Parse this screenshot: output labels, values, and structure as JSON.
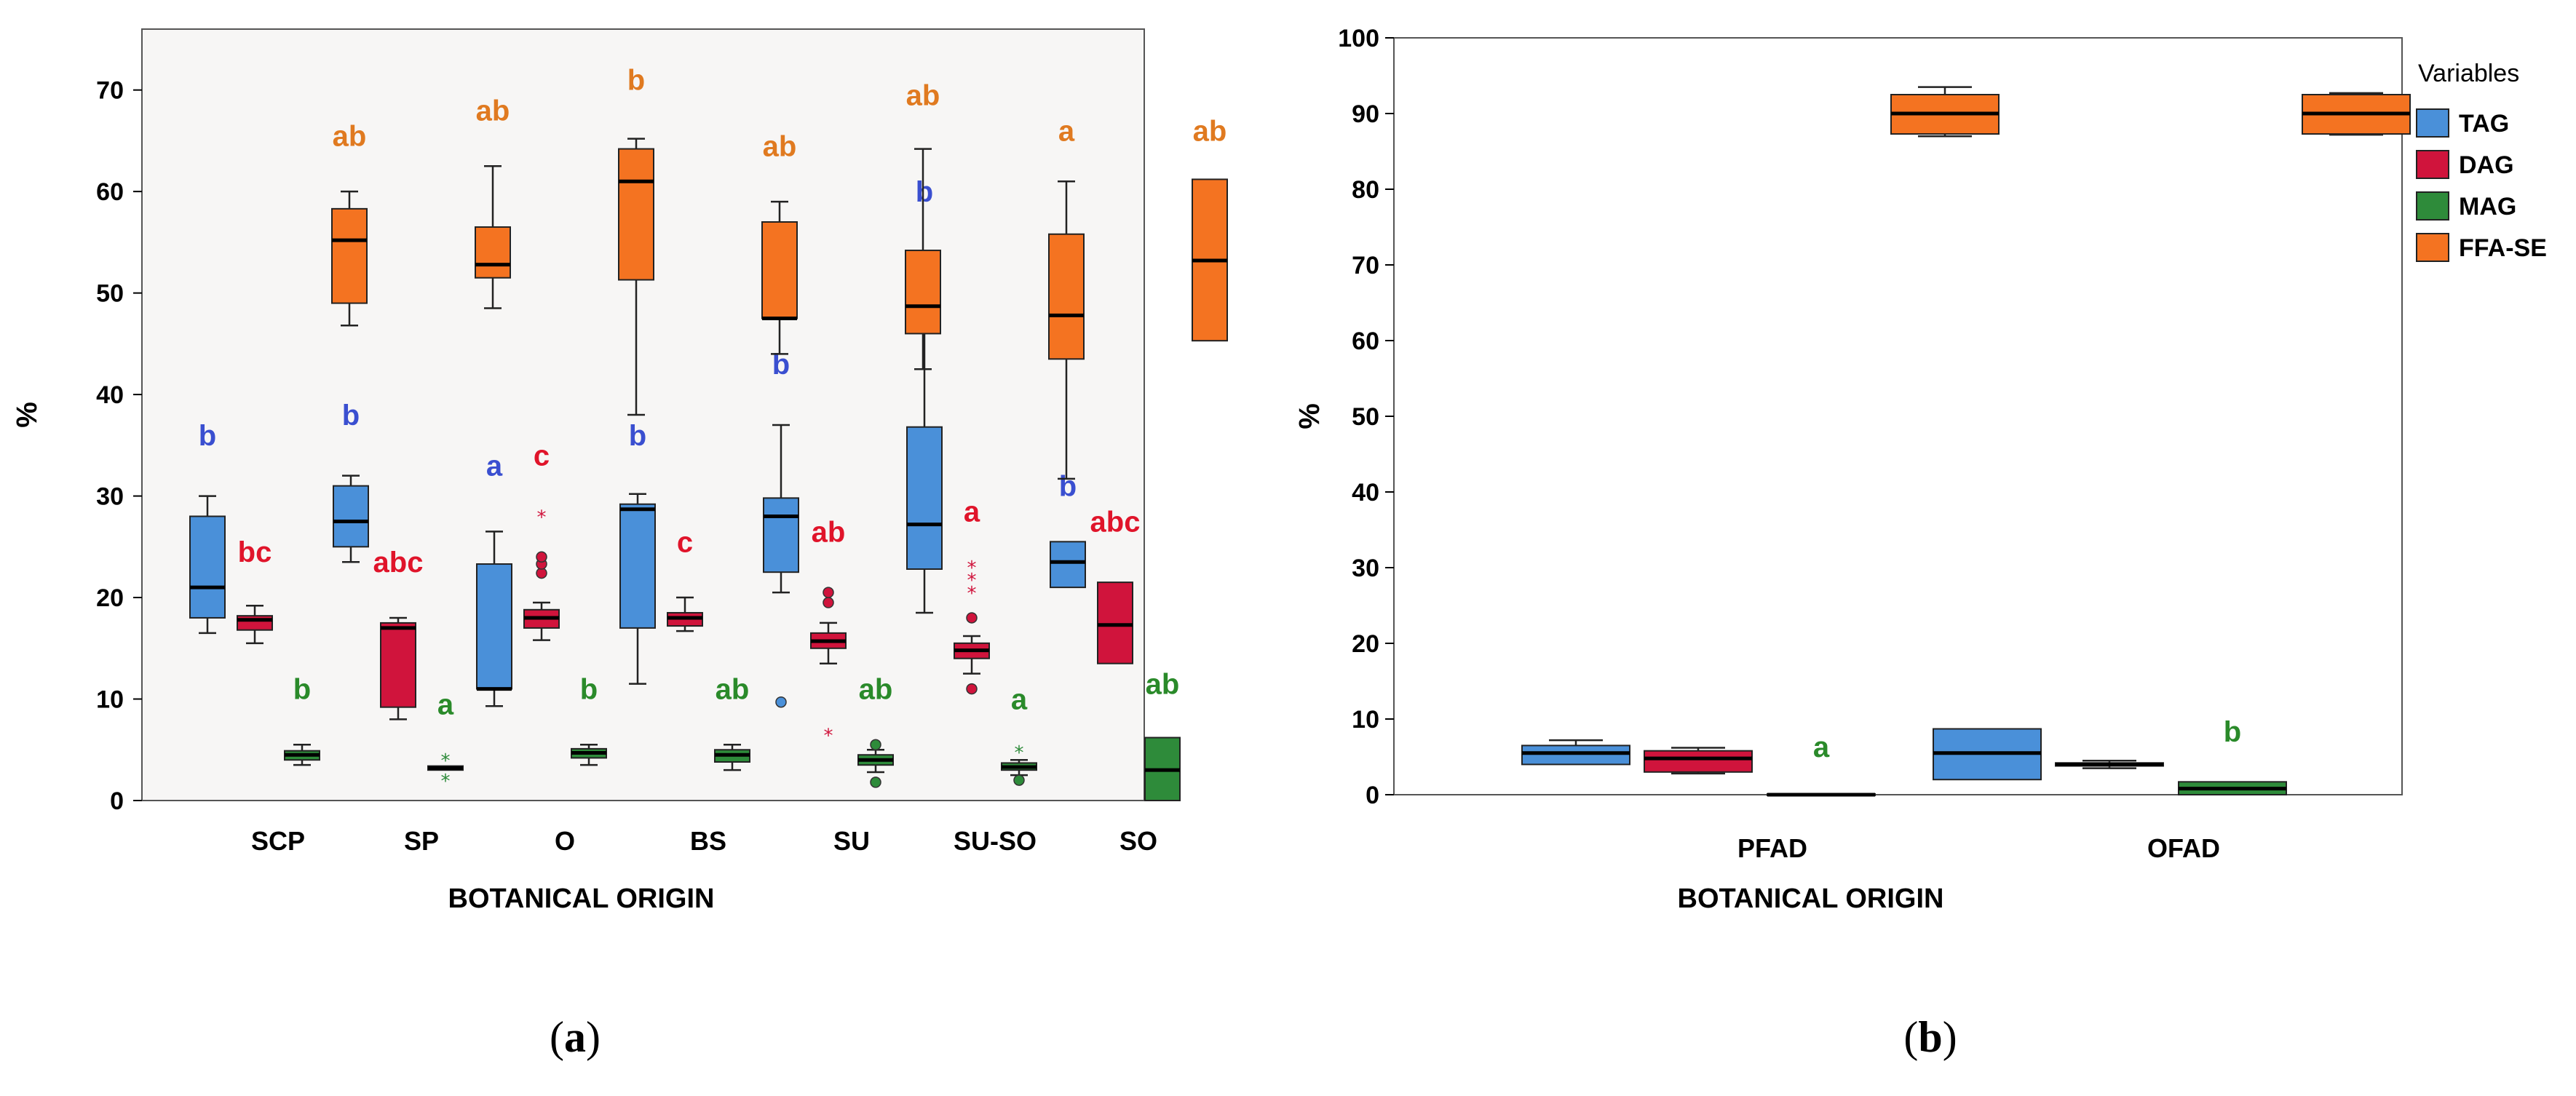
{
  "colors": {
    "TAG": "#4a90d9",
    "DAG": "#d0143c",
    "MAG": "#2e8b3a",
    "FFA-SE": "#f47321",
    "letter_TAG": "#3a4fd0",
    "letter_DAG": "#e0142a",
    "letter_MAG": "#2a8a2a",
    "letter_FFA-SE": "#e07a20",
    "panel_a_bg": "#f7f6f5"
  },
  "chart_data": [
    {
      "id": "a",
      "type": "box",
      "panel_label_open": "(",
      "panel_label_letter": "a",
      "panel_label_close": ")",
      "xlabel": "BOTANICAL ORIGIN",
      "ylabel": "%",
      "ylim": [
        0,
        76
      ],
      "yticks": [
        "0",
        "10",
        "20",
        "30",
        "40",
        "50",
        "60",
        "70"
      ],
      "categories": [
        "SCP",
        "SP",
        "O",
        "BS",
        "SU",
        "SU-SO",
        "SO"
      ],
      "series": [
        {
          "name": "TAG",
          "boxes": [
            {
              "min": 16.5,
              "q1": 18,
              "median": 21,
              "q3": 28,
              "max": 30,
              "letter": "b",
              "letter_y": 35
            },
            {
              "min": 23.5,
              "q1": 25,
              "median": 27.5,
              "q3": 31,
              "max": 32,
              "letter": "b",
              "letter_y": 37
            },
            {
              "min": 9.3,
              "q1": 11,
              "median": 11,
              "q3": 23.3,
              "max": 26.5,
              "letter": "a",
              "letter_y": 32
            },
            {
              "min": 11.5,
              "q1": 17,
              "median": 28.7,
              "q3": 29.2,
              "max": 30.2,
              "letter": "b",
              "letter_y": 35
            },
            {
              "min": 20.5,
              "q1": 22.5,
              "median": 28,
              "q3": 29.8,
              "max": 37,
              "letter": "b",
              "letter_y": 42
            },
            {
              "min": 18.5,
              "q1": 22.8,
              "median": 27.2,
              "q3": 36.8,
              "max": 54,
              "letter": "b",
              "letter_y": 59
            },
            {
              "min": 21,
              "q1": 21,
              "median": 23.5,
              "q3": 25.5,
              "max": 25.5,
              "letter": "b",
              "letter_y": 30
            }
          ],
          "outliers": [
            {
              "cat": "SU",
              "y": 9.7,
              "shape": "circle"
            }
          ]
        },
        {
          "name": "DAG",
          "boxes": [
            {
              "min": 15.5,
              "q1": 16.8,
              "median": 17.8,
              "q3": 18.2,
              "max": 19.2,
              "letter": "bc",
              "letter_y": 23.5
            },
            {
              "min": 8,
              "q1": 9.2,
              "median": 17,
              "q3": 17.5,
              "max": 18,
              "letter": "abc",
              "letter_y": 22.5
            },
            {
              "min": 15.8,
              "q1": 17,
              "median": 18,
              "q3": 18.8,
              "max": 19.5,
              "letter": "c",
              "letter_y": 33
            },
            {
              "min": 16.7,
              "q1": 17.2,
              "median": 18,
              "q3": 18.5,
              "max": 20,
              "letter": "c",
              "letter_y": 24.5
            },
            {
              "min": 13.5,
              "q1": 15,
              "median": 15.7,
              "q3": 16.5,
              "max": 17.5,
              "letter": "ab",
              "letter_y": 25.5
            },
            {
              "min": 12.5,
              "q1": 14,
              "median": 14.8,
              "q3": 15.5,
              "max": 16.2,
              "letter": "a",
              "letter_y": 27.5
            },
            {
              "min": 13.5,
              "q1": 13.5,
              "median": 17.3,
              "q3": 21.5,
              "max": 21.5,
              "letter": "abc",
              "letter_y": 26.5
            }
          ],
          "outliers": [
            {
              "cat": "O",
              "y": 22.4,
              "shape": "circle"
            },
            {
              "cat": "O",
              "y": 23.3,
              "shape": "circle"
            },
            {
              "cat": "O",
              "y": 24,
              "shape": "circle"
            },
            {
              "cat": "O",
              "y": 28,
              "shape": "star"
            },
            {
              "cat": "SU",
              "y": 19.5,
              "shape": "circle"
            },
            {
              "cat": "SU",
              "y": 20.5,
              "shape": "circle"
            },
            {
              "cat": "SU",
              "y": 6.5,
              "shape": "star"
            },
            {
              "cat": "SU-SO",
              "y": 11,
              "shape": "circle"
            },
            {
              "cat": "SU-SO",
              "y": 18,
              "shape": "circle"
            },
            {
              "cat": "SU-SO",
              "y": 20.5,
              "shape": "star"
            },
            {
              "cat": "SU-SO",
              "y": 21.8,
              "shape": "star"
            },
            {
              "cat": "SU-SO",
              "y": 23,
              "shape": "star"
            }
          ]
        },
        {
          "name": "MAG",
          "boxes": [
            {
              "min": 3.5,
              "q1": 4,
              "median": 4.5,
              "q3": 4.9,
              "max": 5.5,
              "letter": "b",
              "letter_y": 10
            },
            {
              "min": 3,
              "q1": 3,
              "median": 3.2,
              "q3": 3.4,
              "max": 3.4,
              "letter": "a",
              "letter_y": 8.5
            },
            {
              "min": 3.5,
              "q1": 4.2,
              "median": 4.7,
              "q3": 5.1,
              "max": 5.5,
              "letter": "b",
              "letter_y": 10
            },
            {
              "min": 3,
              "q1": 3.8,
              "median": 4.5,
              "q3": 5,
              "max": 5.5,
              "letter": "ab",
              "letter_y": 10
            },
            {
              "min": 2.8,
              "q1": 3.5,
              "median": 4,
              "q3": 4.5,
              "max": 5,
              "letter": "ab",
              "letter_y": 10
            },
            {
              "min": 2.5,
              "q1": 3,
              "median": 3.3,
              "q3": 3.7,
              "max": 4,
              "letter": "a",
              "letter_y": 9
            },
            {
              "min": 0,
              "q1": 0,
              "median": 3,
              "q3": 6.2,
              "max": 6.2,
              "letter": "ab",
              "letter_y": 10.5
            }
          ],
          "outliers": [
            {
              "cat": "SP",
              "y": 2,
              "shape": "star"
            },
            {
              "cat": "SP",
              "y": 4,
              "shape": "star"
            },
            {
              "cat": "SU",
              "y": 1.8,
              "shape": "circle"
            },
            {
              "cat": "SU",
              "y": 5.5,
              "shape": "circle"
            },
            {
              "cat": "SU-SO",
              "y": 2,
              "shape": "circle"
            },
            {
              "cat": "SU-SO",
              "y": 4.8,
              "shape": "star"
            }
          ]
        },
        {
          "name": "FFA-SE",
          "boxes": [
            {
              "min": 46.8,
              "q1": 49,
              "median": 55.2,
              "q3": 58.3,
              "max": 60,
              "letter": "ab",
              "letter_y": 64.5
            },
            {
              "min": 48.5,
              "q1": 51.5,
              "median": 52.8,
              "q3": 56.5,
              "max": 62.5,
              "letter": "ab",
              "letter_y": 67
            },
            {
              "min": 38,
              "q1": 51.3,
              "median": 61,
              "q3": 64.2,
              "max": 65.2,
              "letter": "b",
              "letter_y": 70
            },
            {
              "min": 44,
              "q1": 47.5,
              "median": 47.5,
              "q3": 57,
              "max": 59,
              "letter": "ab",
              "letter_y": 63.5
            },
            {
              "min": 42.5,
              "q1": 46,
              "median": 48.7,
              "q3": 54.2,
              "max": 64.2,
              "letter": "ab",
              "letter_y": 68.5
            },
            {
              "min": 31.7,
              "q1": 43.5,
              "median": 47.8,
              "q3": 55.8,
              "max": 61,
              "letter": "a",
              "letter_y": 65
            },
            {
              "min": 45.3,
              "q1": 45.3,
              "median": 53.2,
              "q3": 61.2,
              "max": 61.2,
              "letter": "ab",
              "letter_y": 65
            }
          ],
          "outliers": []
        }
      ]
    },
    {
      "id": "b",
      "type": "box",
      "panel_label_open": "(",
      "panel_label_letter": "b",
      "panel_label_close": ")",
      "xlabel": "BOTANICAL ORIGIN",
      "ylabel": "%",
      "ylim": [
        0,
        100
      ],
      "yticks": [
        "0",
        "10",
        "20",
        "30",
        "40",
        "50",
        "60",
        "70",
        "80",
        "90",
        "100"
      ],
      "categories": [
        "PFAD",
        "OFAD"
      ],
      "legend_title": "Variables",
      "legend_position": "right",
      "series": [
        {
          "name": "TAG",
          "boxes": [
            {
              "min": 4,
              "q1": 4,
              "median": 5.5,
              "q3": 6.5,
              "max": 7.2,
              "letter": "",
              "letter_y": 0
            },
            {
              "min": 2,
              "q1": 2,
              "median": 5.5,
              "q3": 8.7,
              "max": 8.7,
              "letter": "",
              "letter_y": 0
            }
          ],
          "outliers": []
        },
        {
          "name": "DAG",
          "boxes": [
            {
              "min": 2.8,
              "q1": 3,
              "median": 4.8,
              "q3": 5.8,
              "max": 6.2,
              "letter": "",
              "letter_y": 0
            },
            {
              "min": 3.5,
              "q1": 3.8,
              "median": 4,
              "q3": 4.2,
              "max": 4.5,
              "letter": "",
              "letter_y": 0
            }
          ],
          "outliers": []
        },
        {
          "name": "MAG",
          "boxes": [
            {
              "min": 0,
              "q1": 0,
              "median": 0,
              "q3": 0.1,
              "max": 0.1,
              "letter": "a",
              "letter_y": 5
            },
            {
              "min": 0,
              "q1": 0,
              "median": 0.8,
              "q3": 1.7,
              "max": 1.7,
              "letter": "b",
              "letter_y": 7
            }
          ],
          "outliers": []
        },
        {
          "name": "FFA-SE",
          "boxes": [
            {
              "min": 87,
              "q1": 87.3,
              "median": 90,
              "q3": 92.5,
              "max": 93.5,
              "letter": "",
              "letter_y": 0
            },
            {
              "min": 87.2,
              "q1": 87.3,
              "median": 90,
              "q3": 92.5,
              "max": 92.7,
              "letter": "",
              "letter_y": 0
            }
          ],
          "outliers": []
        }
      ]
    }
  ]
}
